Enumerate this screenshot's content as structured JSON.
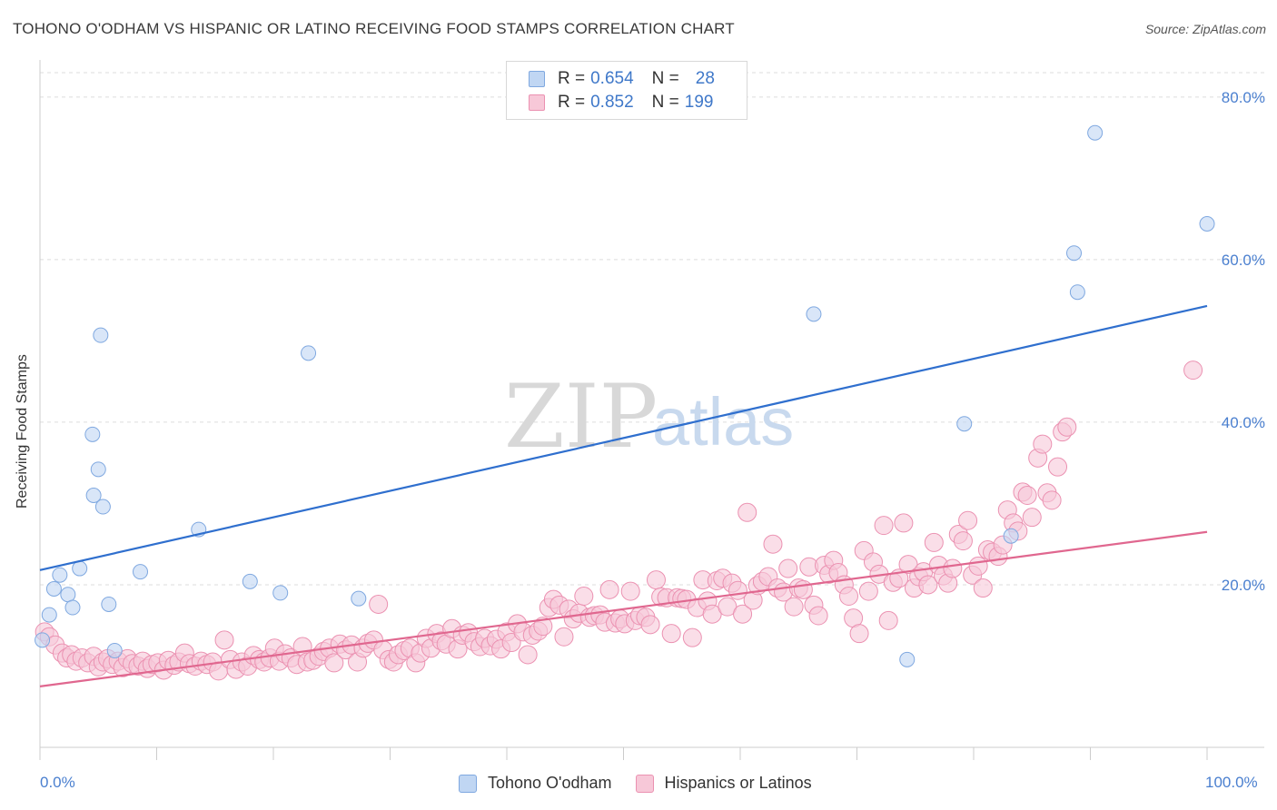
{
  "title": "TOHONO O'ODHAM VS HISPANIC OR LATINO RECEIVING FOOD STAMPS CORRELATION CHART",
  "source": "Source: ZipAtlas.com",
  "watermark": {
    "zip": "ZIP",
    "atlas": "atlas"
  },
  "colors": {
    "blue_fill": "#c0d6f3",
    "blue_stroke": "#7fa8e0",
    "blue_line": "#2f6fce",
    "pink_fill": "#f7c8d8",
    "pink_stroke": "#eb91b1",
    "pink_line": "#e0678f",
    "grid": "#dddddd",
    "tick_label": "#4a7fcf"
  },
  "legend": {
    "rows": [
      {
        "r_label": "R = ",
        "r_value": "0.654",
        "n_label": "N = ",
        "n_value": "28"
      },
      {
        "r_label": "R = ",
        "r_value": "0.852",
        "n_label": "N = ",
        "n_value": "199"
      }
    ]
  },
  "bottom_legend": [
    "Tohono O'odham",
    "Hispanics or Latinos"
  ],
  "chart_data": {
    "type": "scatter",
    "title": "TOHONO O'ODHAM VS HISPANIC OR LATINO RECEIVING FOOD STAMPS CORRELATION CHART",
    "xlabel": "",
    "ylabel": "Receiving Food Stamps",
    "xlim": [
      0,
      100
    ],
    "ylim": [
      0,
      83
    ],
    "x_tick_labels": {
      "min": "0.0%",
      "max": "100.0%"
    },
    "y_ticks": [
      20,
      40,
      60,
      80
    ],
    "y_tick_labels": [
      "20.0%",
      "40.0%",
      "60.0%",
      "80.0%"
    ],
    "grid": true,
    "legend_position": "top-center",
    "series": [
      {
        "name": "Tohono O'odham",
        "R": 0.654,
        "N": 28,
        "trend": {
          "x": [
            0,
            100
          ],
          "y": [
            21.8,
            54.3
          ]
        },
        "points": [
          [
            0.2,
            13.2
          ],
          [
            0.8,
            16.3
          ],
          [
            1.2,
            19.5
          ],
          [
            1.7,
            21.2
          ],
          [
            2.4,
            18.8
          ],
          [
            2.8,
            17.2
          ],
          [
            3.4,
            22.0
          ],
          [
            4.6,
            31.0
          ],
          [
            4.5,
            38.5
          ],
          [
            5.0,
            34.2
          ],
          [
            5.2,
            50.7
          ],
          [
            5.4,
            29.6
          ],
          [
            5.9,
            17.6
          ],
          [
            6.4,
            11.9
          ],
          [
            8.6,
            21.6
          ],
          [
            13.6,
            26.8
          ],
          [
            18.0,
            20.4
          ],
          [
            20.6,
            19.0
          ],
          [
            23.0,
            48.5
          ],
          [
            27.3,
            18.3
          ],
          [
            66.3,
            53.3
          ],
          [
            74.3,
            10.8
          ],
          [
            79.2,
            39.8
          ],
          [
            83.2,
            26.0
          ],
          [
            88.6,
            60.8
          ],
          [
            88.9,
            56.0
          ],
          [
            90.4,
            75.6
          ],
          [
            100.0,
            64.4
          ]
        ]
      },
      {
        "name": "Hispanics or Latinos",
        "R": 0.852,
        "N": 199,
        "trend": {
          "x": [
            0,
            100
          ],
          "y": [
            7.5,
            26.5
          ]
        },
        "points": [
          [
            0.4,
            14.2
          ],
          [
            0.8,
            13.6
          ],
          [
            1.3,
            12.6
          ],
          [
            1.9,
            11.6
          ],
          [
            2.3,
            11.0
          ],
          [
            2.7,
            11.4
          ],
          [
            3.1,
            10.6
          ],
          [
            3.6,
            11.0
          ],
          [
            4.1,
            10.4
          ],
          [
            4.6,
            11.2
          ],
          [
            5.0,
            9.9
          ],
          [
            5.4,
            10.5
          ],
          [
            5.8,
            10.9
          ],
          [
            6.2,
            10.2
          ],
          [
            6.7,
            10.6
          ],
          [
            7.1,
            9.8
          ],
          [
            7.5,
            10.9
          ],
          [
            7.9,
            10.3
          ],
          [
            8.4,
            10.0
          ],
          [
            8.8,
            10.6
          ],
          [
            9.2,
            9.7
          ],
          [
            9.6,
            10.2
          ],
          [
            10.1,
            10.4
          ],
          [
            10.6,
            9.5
          ],
          [
            11.0,
            10.7
          ],
          [
            11.5,
            10.1
          ],
          [
            11.9,
            10.5
          ],
          [
            12.4,
            11.6
          ],
          [
            12.8,
            10.3
          ],
          [
            13.3,
            10.0
          ],
          [
            13.8,
            10.6
          ],
          [
            14.3,
            10.2
          ],
          [
            14.8,
            10.5
          ],
          [
            15.3,
            9.4
          ],
          [
            15.8,
            13.2
          ],
          [
            16.3,
            10.8
          ],
          [
            16.8,
            9.6
          ],
          [
            17.3,
            10.5
          ],
          [
            17.8,
            10.0
          ],
          [
            18.3,
            11.3
          ],
          [
            18.8,
            10.8
          ],
          [
            19.2,
            10.5
          ],
          [
            19.7,
            11.0
          ],
          [
            20.1,
            12.2
          ],
          [
            20.5,
            10.6
          ],
          [
            21.0,
            11.5
          ],
          [
            21.5,
            11.0
          ],
          [
            22.0,
            10.2
          ],
          [
            22.5,
            12.4
          ],
          [
            22.9,
            10.5
          ],
          [
            23.4,
            10.7
          ],
          [
            23.9,
            11.2
          ],
          [
            24.3,
            11.8
          ],
          [
            24.8,
            12.2
          ],
          [
            25.2,
            10.4
          ],
          [
            25.7,
            12.7
          ],
          [
            26.2,
            12.0
          ],
          [
            26.7,
            12.6
          ],
          [
            27.2,
            10.5
          ],
          [
            27.7,
            12.2
          ],
          [
            28.1,
            12.8
          ],
          [
            28.6,
            13.2
          ],
          [
            29.0,
            17.6
          ],
          [
            29.4,
            12.0
          ],
          [
            29.9,
            10.8
          ],
          [
            30.3,
            10.5
          ],
          [
            30.7,
            11.4
          ],
          [
            31.2,
            11.9
          ],
          [
            31.7,
            12.2
          ],
          [
            32.2,
            10.4
          ],
          [
            32.6,
            11.6
          ],
          [
            33.1,
            13.4
          ],
          [
            33.5,
            12.2
          ],
          [
            34.0,
            14.0
          ],
          [
            34.4,
            13.1
          ],
          [
            34.8,
            12.7
          ],
          [
            35.3,
            14.6
          ],
          [
            35.8,
            12.1
          ],
          [
            36.2,
            13.8
          ],
          [
            36.7,
            14.1
          ],
          [
            37.2,
            13.0
          ],
          [
            37.7,
            12.4
          ],
          [
            38.1,
            13.4
          ],
          [
            38.6,
            12.5
          ],
          [
            39.1,
            13.3
          ],
          [
            39.5,
            12.1
          ],
          [
            40.0,
            14.2
          ],
          [
            40.4,
            12.9
          ],
          [
            40.9,
            15.2
          ],
          [
            41.4,
            14.2
          ],
          [
            41.8,
            11.4
          ],
          [
            42.2,
            13.8
          ],
          [
            42.7,
            14.3
          ],
          [
            43.1,
            14.9
          ],
          [
            43.6,
            17.2
          ],
          [
            44.0,
            18.2
          ],
          [
            44.5,
            17.5
          ],
          [
            44.9,
            13.6
          ],
          [
            45.3,
            17.0
          ],
          [
            45.7,
            15.8
          ],
          [
            46.2,
            16.5
          ],
          [
            46.6,
            18.6
          ],
          [
            47.1,
            16.0
          ],
          [
            47.5,
            16.2
          ],
          [
            48.0,
            16.3
          ],
          [
            48.4,
            15.4
          ],
          [
            48.8,
            19.4
          ],
          [
            49.3,
            15.3
          ],
          [
            49.7,
            15.8
          ],
          [
            50.1,
            15.2
          ],
          [
            50.6,
            19.2
          ],
          [
            51.0,
            15.6
          ],
          [
            51.4,
            16.2
          ],
          [
            51.9,
            16.0
          ],
          [
            52.3,
            15.1
          ],
          [
            52.8,
            20.6
          ],
          [
            53.2,
            18.5
          ],
          [
            53.7,
            18.4
          ],
          [
            54.1,
            14.0
          ],
          [
            54.6,
            18.4
          ],
          [
            55.0,
            18.3
          ],
          [
            55.4,
            18.2
          ],
          [
            55.9,
            13.5
          ],
          [
            56.3,
            17.2
          ],
          [
            56.8,
            20.6
          ],
          [
            57.2,
            18.0
          ],
          [
            57.6,
            16.4
          ],
          [
            58.0,
            20.5
          ],
          [
            58.5,
            20.8
          ],
          [
            58.9,
            17.3
          ],
          [
            59.3,
            20.2
          ],
          [
            59.8,
            19.3
          ],
          [
            60.2,
            16.4
          ],
          [
            60.6,
            28.9
          ],
          [
            61.1,
            18.1
          ],
          [
            61.5,
            19.9
          ],
          [
            61.9,
            20.4
          ],
          [
            62.4,
            21.0
          ],
          [
            62.8,
            25.0
          ],
          [
            63.2,
            19.6
          ],
          [
            63.7,
            19.1
          ],
          [
            64.1,
            22.0
          ],
          [
            64.6,
            17.3
          ],
          [
            65.0,
            19.6
          ],
          [
            65.4,
            19.4
          ],
          [
            65.9,
            22.2
          ],
          [
            66.3,
            17.5
          ],
          [
            66.7,
            16.2
          ],
          [
            67.2,
            22.4
          ],
          [
            67.6,
            21.3
          ],
          [
            68.0,
            23.0
          ],
          [
            68.4,
            21.5
          ],
          [
            68.9,
            20.0
          ],
          [
            69.3,
            18.6
          ],
          [
            69.7,
            15.9
          ],
          [
            70.2,
            14.0
          ],
          [
            70.6,
            24.2
          ],
          [
            71.0,
            19.2
          ],
          [
            71.4,
            22.8
          ],
          [
            71.9,
            21.3
          ],
          [
            72.3,
            27.3
          ],
          [
            72.7,
            15.6
          ],
          [
            73.1,
            20.3
          ],
          [
            73.6,
            20.8
          ],
          [
            74.0,
            27.6
          ],
          [
            74.4,
            22.5
          ],
          [
            74.9,
            19.6
          ],
          [
            75.3,
            21.0
          ],
          [
            75.7,
            21.6
          ],
          [
            76.1,
            20.0
          ],
          [
            76.6,
            25.2
          ],
          [
            77.0,
            22.4
          ],
          [
            77.4,
            21.1
          ],
          [
            77.8,
            20.2
          ],
          [
            78.2,
            22.0
          ],
          [
            78.7,
            26.2
          ],
          [
            79.1,
            25.4
          ],
          [
            79.5,
            27.9
          ],
          [
            79.9,
            21.2
          ],
          [
            80.4,
            22.3
          ],
          [
            80.8,
            19.6
          ],
          [
            81.2,
            24.3
          ],
          [
            81.6,
            24.0
          ],
          [
            82.1,
            23.5
          ],
          [
            82.5,
            24.9
          ],
          [
            82.9,
            29.2
          ],
          [
            83.4,
            27.6
          ],
          [
            83.8,
            26.6
          ],
          [
            84.2,
            31.4
          ],
          [
            84.6,
            31.0
          ],
          [
            85.0,
            28.3
          ],
          [
            85.5,
            35.6
          ],
          [
            85.9,
            37.3
          ],
          [
            86.3,
            31.3
          ],
          [
            86.7,
            30.4
          ],
          [
            87.2,
            34.5
          ],
          [
            87.6,
            38.8
          ],
          [
            88.0,
            39.4
          ],
          [
            98.8,
            46.4
          ]
        ]
      }
    ]
  }
}
